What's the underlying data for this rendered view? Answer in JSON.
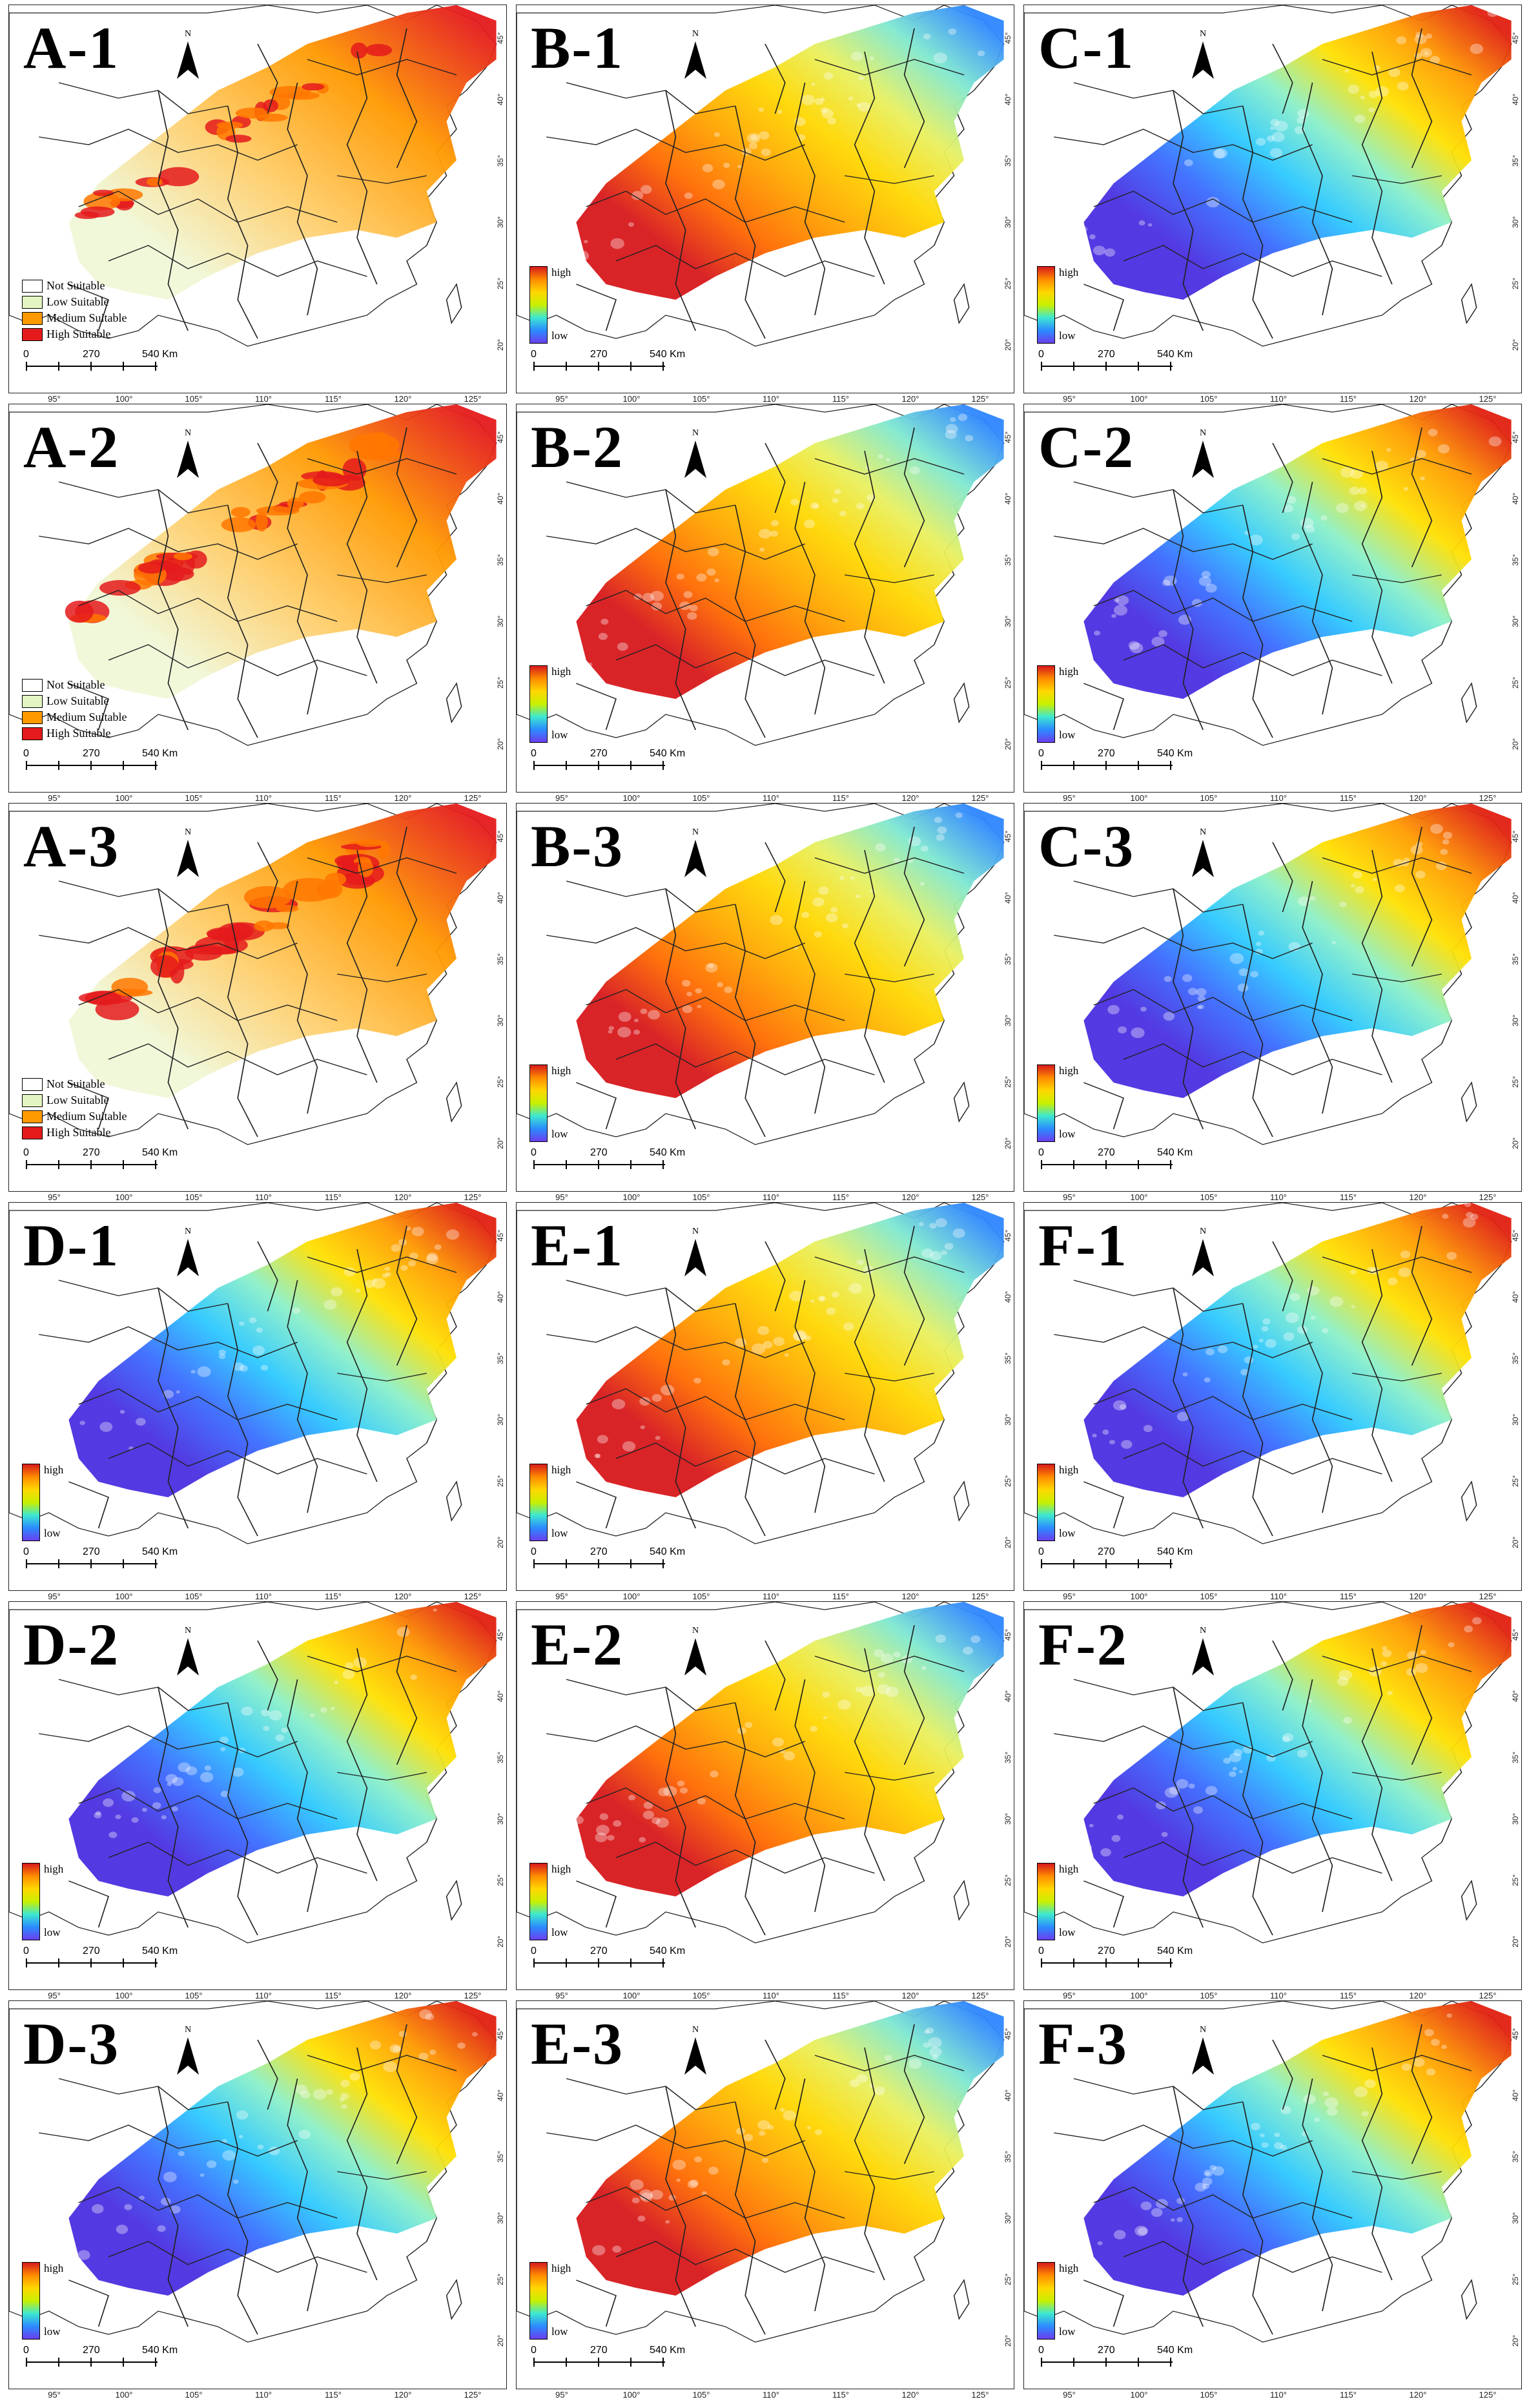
{
  "figure": {
    "panels": [
      {
        "label": "A-1",
        "type": "categorical",
        "intensity": 1.0,
        "gradient": "suit"
      },
      {
        "label": "B-1",
        "type": "continuous",
        "gradient": "warm"
      },
      {
        "label": "C-1",
        "type": "continuous",
        "gradient": "cool"
      },
      {
        "label": "A-2",
        "type": "categorical",
        "intensity": 1.35,
        "gradient": "suit"
      },
      {
        "label": "B-2",
        "type": "continuous",
        "gradient": "warm"
      },
      {
        "label": "C-2",
        "type": "continuous",
        "gradient": "cool"
      },
      {
        "label": "A-3",
        "type": "categorical",
        "intensity": 1.45,
        "gradient": "suit"
      },
      {
        "label": "B-3",
        "type": "continuous",
        "gradient": "warm"
      },
      {
        "label": "C-3",
        "type": "continuous",
        "gradient": "cool"
      },
      {
        "label": "D-1",
        "type": "continuous",
        "gradient": "cool"
      },
      {
        "label": "E-1",
        "type": "continuous",
        "gradient": "warm"
      },
      {
        "label": "F-1",
        "type": "continuous",
        "gradient": "cool"
      },
      {
        "label": "D-2",
        "type": "continuous",
        "gradient": "cool"
      },
      {
        "label": "E-2",
        "type": "continuous",
        "gradient": "warm"
      },
      {
        "label": "F-2",
        "type": "continuous",
        "gradient": "cool"
      },
      {
        "label": "D-3",
        "type": "continuous",
        "gradient": "cool"
      },
      {
        "label": "E-3",
        "type": "continuous",
        "gradient": "warm"
      },
      {
        "label": "F-3",
        "type": "continuous",
        "gradient": "cool"
      }
    ],
    "north_label": "N",
    "categorical_legend": [
      {
        "label": "Not Suitable",
        "color": "#ffffff"
      },
      {
        "label": "Low Suitable",
        "color": "#e3f5c2"
      },
      {
        "label": "Medium Suitable",
        "color": "#ff9900"
      },
      {
        "label": "High Suitable",
        "color": "#e41a1c"
      }
    ],
    "continuous_legend": {
      "high": "high",
      "low": "low"
    },
    "scale_bar": {
      "ticks": [
        "0",
        "270",
        "540 Km"
      ]
    },
    "longitude_labels": [
      "95°",
      "100°",
      "105°",
      "110°",
      "115°",
      "120°",
      "125°"
    ],
    "latitude_labels": [
      "20°",
      "25°",
      "30°",
      "35°",
      "40°",
      "45°"
    ],
    "colors": {
      "warm": [
        "#d7191c",
        "#ff6a00",
        "#ffa500",
        "#ffd700",
        "#e8f060",
        "#7fe8d0",
        "#2e86ff"
      ],
      "cool": [
        "#4a2fe0",
        "#3a6cff",
        "#2cc8ff",
        "#8cf0c8",
        "#ffe000",
        "#ff9a00",
        "#e02010"
      ],
      "suit": [
        "#f0f8d8",
        "#ffcc66",
        "#ff9900",
        "#e41a1c"
      ],
      "border": "#222222"
    }
  }
}
